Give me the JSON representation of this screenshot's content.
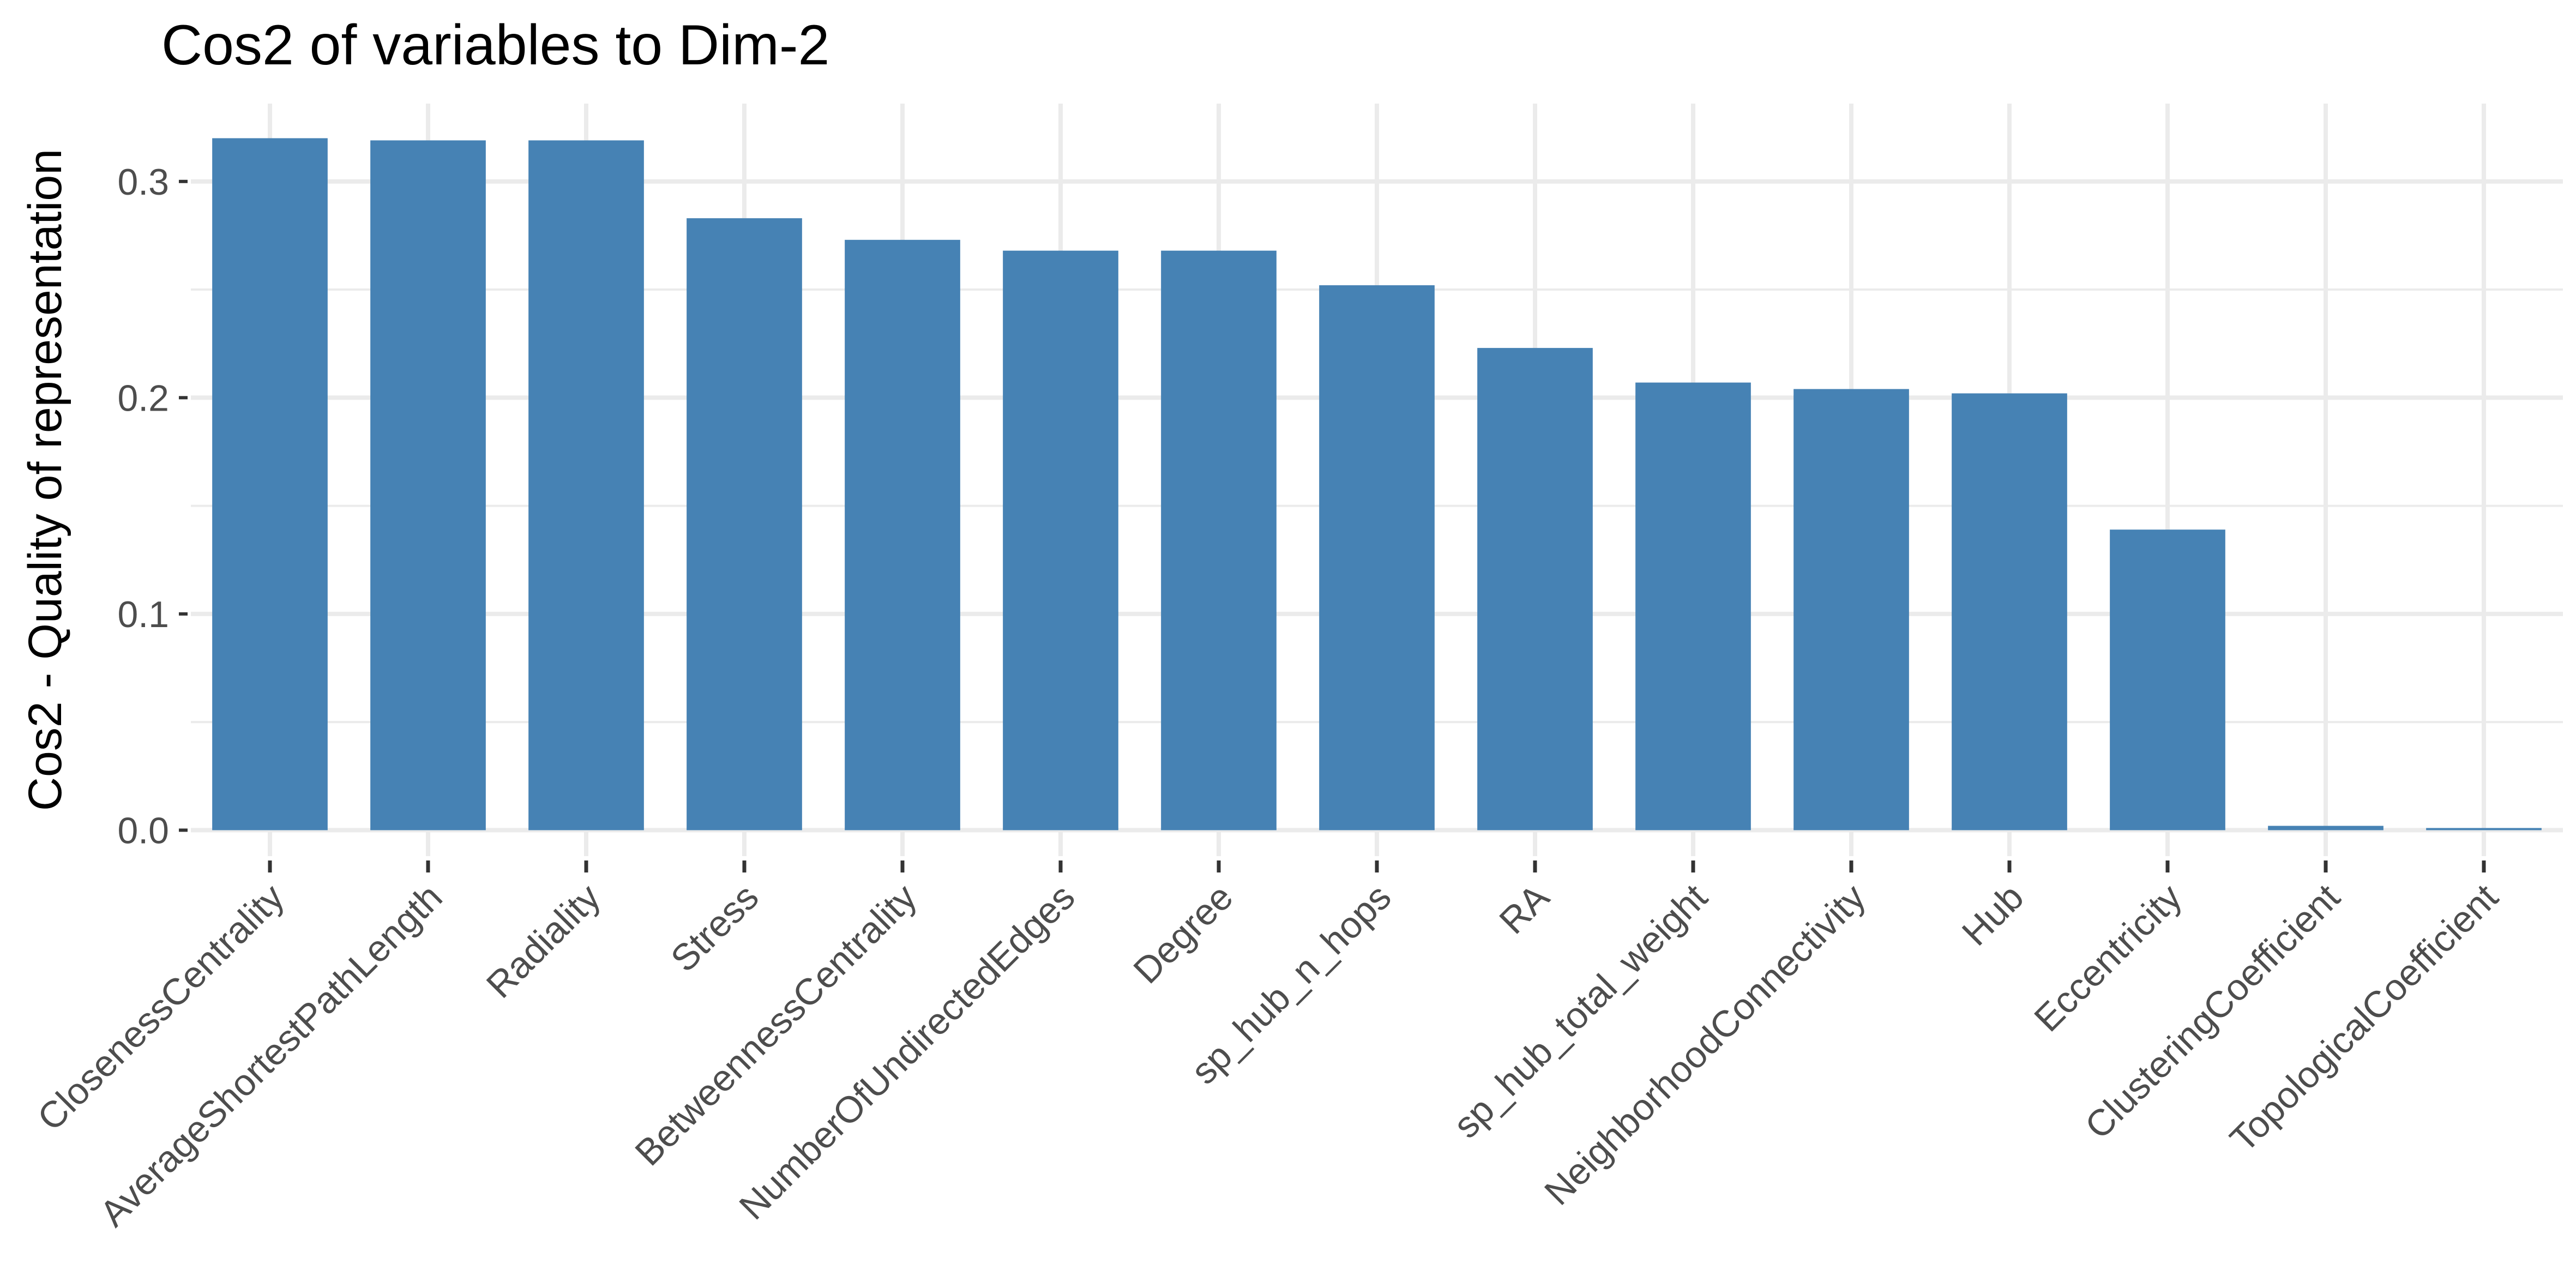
{
  "chart_data": {
    "type": "bar",
    "title": "Cos2 of variables to Dim-2",
    "xlabel": "",
    "ylabel": "Cos2 - Quality of representation",
    "categories": [
      "ClosenessCentrality",
      "AverageShortestPathLength",
      "Radiality",
      "Stress",
      "BetweennessCentrality",
      "NumberOfUndirectedEdges",
      "Degree",
      "sp_hub_n_hops",
      "RA",
      "sp_hub_total_weight",
      "NeighborhoodConnectivity",
      "Hub",
      "Eccentricity",
      "ClusteringCoefficient",
      "TopologicalCoefficient"
    ],
    "values": [
      0.32,
      0.319,
      0.319,
      0.283,
      0.273,
      0.268,
      0.268,
      0.252,
      0.223,
      0.207,
      0.204,
      0.202,
      0.139,
      0.002,
      0.001
    ],
    "yticks": [
      "0.0",
      "0.1",
      "0.2",
      "0.3"
    ],
    "ytick_values": [
      0.0,
      0.1,
      0.2,
      0.3
    ],
    "ylim": [
      -0.012,
      0.336
    ],
    "bar_color": "#4682B4",
    "grid": true,
    "gridline_color": "#EBEBEB",
    "legend": "none"
  }
}
